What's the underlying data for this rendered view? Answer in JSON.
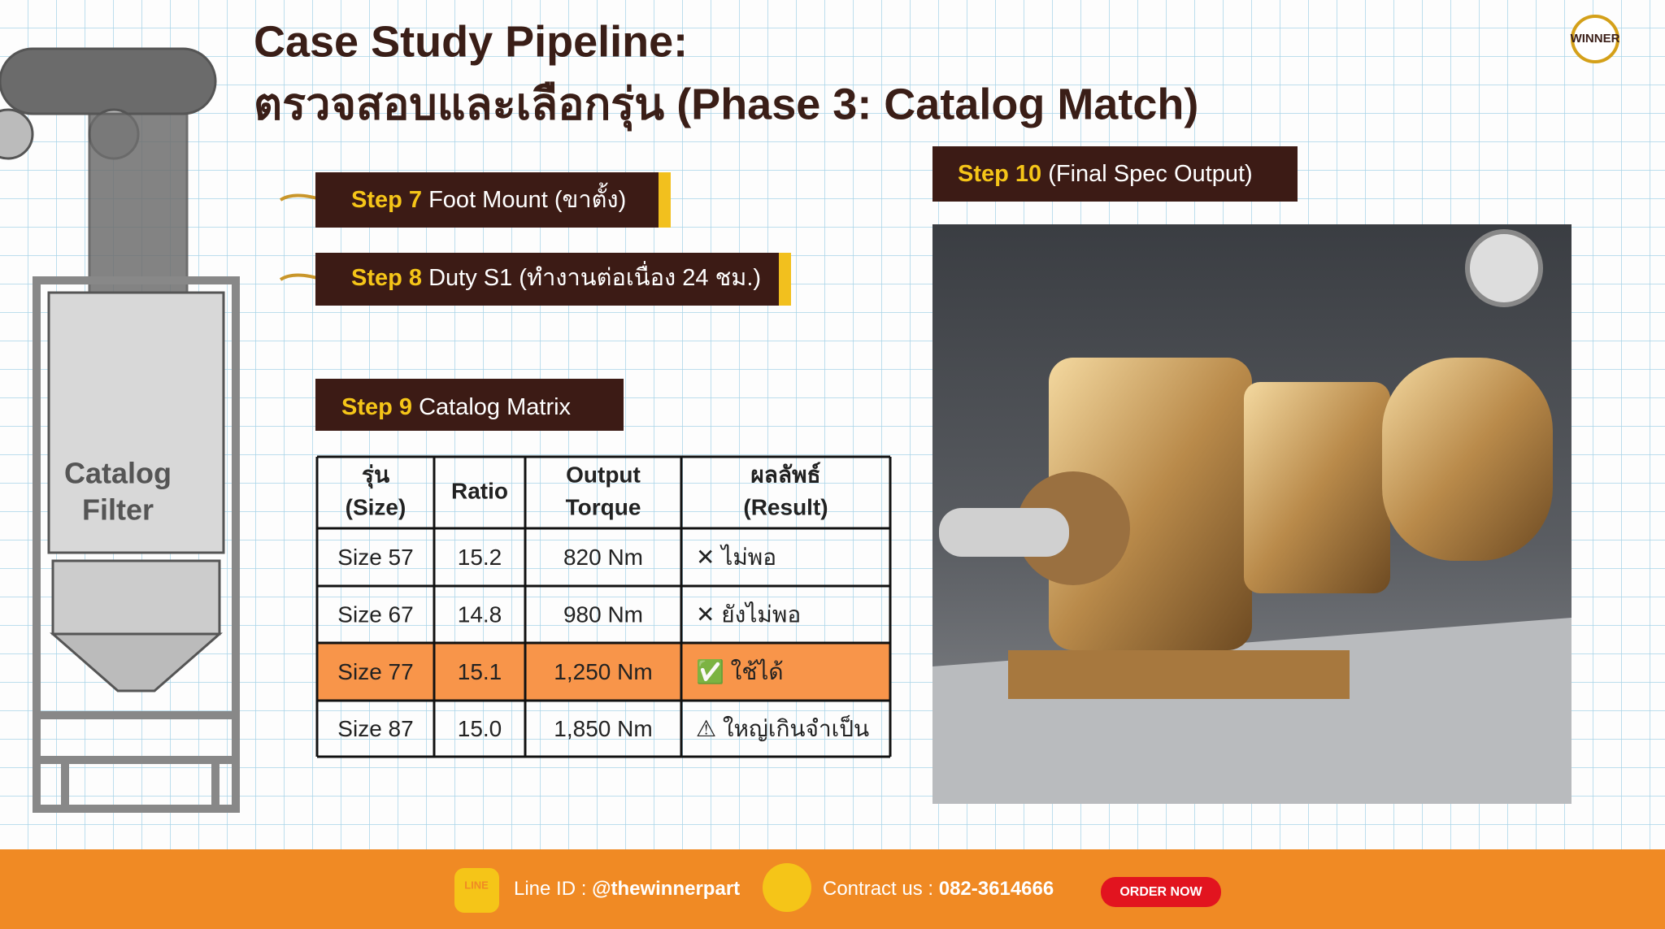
{
  "header": {
    "title_line1": "Case Study Pipeline:",
    "title_line2": "ตรวจสอบและเลือกรุ่น (Phase 3: Catalog Match)",
    "logo": "WINNER"
  },
  "illustration": {
    "label_line1": "Catalog",
    "label_line2": "Filter"
  },
  "steps": [
    {
      "label": "Step 7",
      "text": "Foot Mount (ขาตั้ง)"
    },
    {
      "label": "Step 8",
      "text": "Duty S1 (ทำงานต่อเนื่อง 24 ชม.)"
    },
    {
      "label": "Step 9",
      "text": "Catalog Matrix"
    },
    {
      "label": "Step 10",
      "text": "(Final Spec Output)"
    }
  ],
  "table": {
    "header": [
      [
        "รุ่น",
        "(Size)"
      ],
      [
        "Ratio"
      ],
      [
        "Output",
        "Torque"
      ],
      [
        "ผลลัพธ์",
        "(Result)"
      ]
    ],
    "rows": [
      [
        "Size 57",
        "15.2",
        "820 Nm",
        "✕ ไม่พอ"
      ],
      [
        "Size 67",
        "14.8",
        "980 Nm",
        "✕ ยังไม่พอ"
      ],
      [
        "Size 77",
        "15.1",
        "1,250 Nm",
        "✅ ใช้ได้"
      ],
      [
        "Size 87",
        "15.0",
        "1,850 Nm",
        "⚠ ใหญ่เกินจำเป็น"
      ]
    ]
  },
  "footer": {
    "line_icon": "LINE",
    "line_label": "Line ID :",
    "line_id": "@thewinnerpart",
    "contact_label": "Contract us :",
    "phone": "082-3614666",
    "button": "ORDER NOW"
  }
}
